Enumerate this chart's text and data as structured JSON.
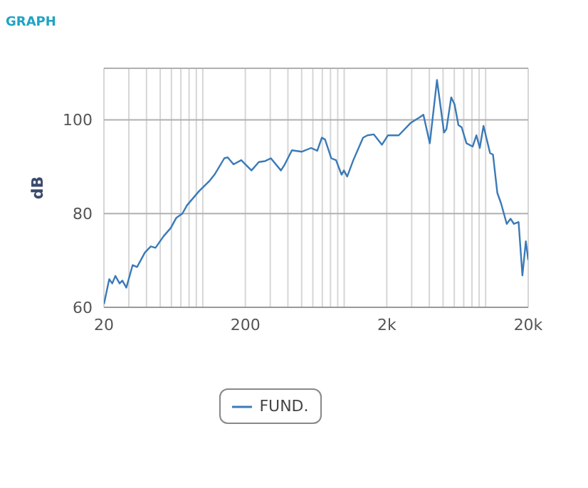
{
  "chart_data": {
    "type": "line",
    "title": "GRAPH",
    "ylabel": "dB",
    "log": "x",
    "grid": true,
    "legend": "bottom",
    "marker": "none",
    "line_style": "solid",
    "xlim": [
      20,
      20000
    ],
    "ylim": [
      60,
      111
    ],
    "xticks": [
      20,
      {
        "value": 30,
        "label": null
      },
      {
        "value": 40,
        "label": null
      },
      {
        "value": 50,
        "label": null
      },
      {
        "value": 60,
        "label": null
      },
      {
        "value": 70,
        "label": null
      },
      {
        "value": 80,
        "label": null
      },
      {
        "value": 90,
        "label": null
      },
      {
        "value": 100,
        "label": null
      },
      200,
      {
        "value": 300,
        "label": null
      },
      {
        "value": 400,
        "label": null
      },
      {
        "value": 500,
        "label": null
      },
      {
        "value": 600,
        "label": null
      },
      {
        "value": 700,
        "label": null
      },
      {
        "value": 800,
        "label": null
      },
      {
        "value": 900,
        "label": null
      },
      {
        "value": 1000,
        "label": null
      },
      {
        "value": 2000,
        "label": "2k"
      },
      {
        "value": 3000,
        "label": null
      },
      {
        "value": 4000,
        "label": null
      },
      {
        "value": 5000,
        "label": null
      },
      {
        "value": 6000,
        "label": null
      },
      {
        "value": 7000,
        "label": null
      },
      {
        "value": 8000,
        "label": null
      },
      {
        "value": 9000,
        "label": null
      },
      {
        "value": 10000,
        "label": null
      },
      {
        "value": 20000,
        "label": "20k"
      }
    ],
    "yticks": [
      60,
      80,
      100
    ],
    "x": [
      20,
      21.8,
      22.9,
      24.1,
      25.8,
      27,
      28.8,
      31.9,
      34.3,
      39,
      42.9,
      46.3,
      52.9,
      59.3,
      65,
      71.7,
      77.5,
      94.2,
      111.8,
      121,
      142,
      150,
      165,
      187,
      221,
      249,
      276,
      303,
      357,
      380,
      427,
      500,
      583,
      645,
      695,
      732,
      810,
      875,
      958,
      995,
      1050,
      1160,
      1360,
      1460,
      1620,
      1850,
      2040,
      2430,
      2940,
      3440,
      3630,
      4030,
      4530,
      5080,
      5280,
      5710,
      6030,
      6420,
      6770,
      7320,
      8090,
      8610,
      9090,
      9660,
      10750,
      11270,
      12100,
      12850,
      14100,
      15000,
      15860,
      17100,
      18200,
      19250,
      20000
    ],
    "series": [
      {
        "name": "FUND.",
        "color": "#3a7ab8",
        "values": [
          60.7,
          66,
          65.1,
          66.7,
          65.1,
          65.7,
          64.2,
          69,
          68.6,
          71.7,
          73,
          72.7,
          75.2,
          76.9,
          79.1,
          80,
          81.8,
          84.8,
          87,
          88.3,
          91.8,
          92,
          90.5,
          91.4,
          89.2,
          91,
          91.2,
          91.8,
          89.2,
          90.5,
          93.5,
          93.2,
          94,
          93.4,
          96.2,
          95.8,
          91.8,
          91.4,
          88.3,
          89.2,
          87.9,
          91.4,
          96.2,
          96.7,
          96.9,
          94.7,
          96.7,
          96.7,
          99.3,
          100.6,
          101.1,
          95,
          108.5,
          97.3,
          98,
          104.8,
          103.3,
          98.9,
          98.4,
          95,
          94.3,
          96.7,
          94,
          98.7,
          92.9,
          92.6,
          84.4,
          82.2,
          77.8,
          78.9,
          77.8,
          78.2,
          66.8,
          74.1,
          70.1
        ]
      }
    ]
  }
}
